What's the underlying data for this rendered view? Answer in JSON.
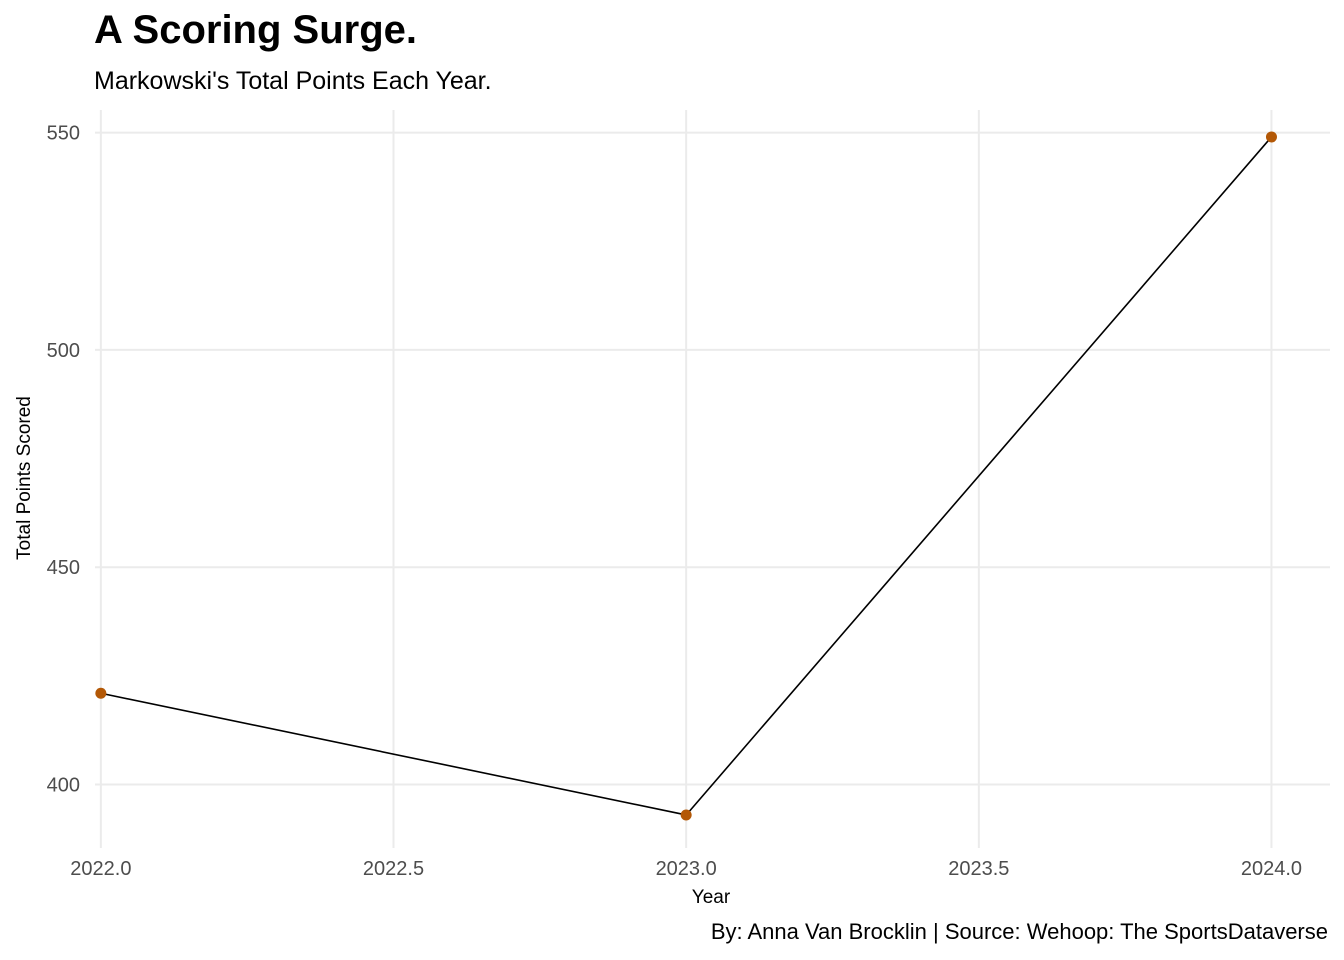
{
  "chart_data": {
    "type": "line",
    "title": "A Scoring Surge.",
    "subtitle": "Markowski's Total Points Each Year.",
    "caption": "By: Anna Van Brocklin | Source: Wehoop: The SportsDataverse",
    "xlabel": "Year",
    "ylabel": "Total Points Scored",
    "x": [
      2022,
      2023,
      2024
    ],
    "y": [
      421,
      393,
      549
    ],
    "xlim": [
      2021.99,
      2024.1
    ],
    "ylim": [
      385.4,
      555.2
    ],
    "xticks": [
      2022.0,
      2022.5,
      2023.0,
      2023.5,
      2024.0
    ],
    "xtick_labels": [
      "2022.0",
      "2022.5",
      "2023.0",
      "2023.5",
      "2024.0"
    ],
    "yticks": [
      400,
      450,
      500,
      550
    ],
    "ytick_labels": [
      "400",
      "450",
      "500",
      "550"
    ],
    "line_color": "#000000",
    "point_color": "#b35806",
    "grid": true
  }
}
